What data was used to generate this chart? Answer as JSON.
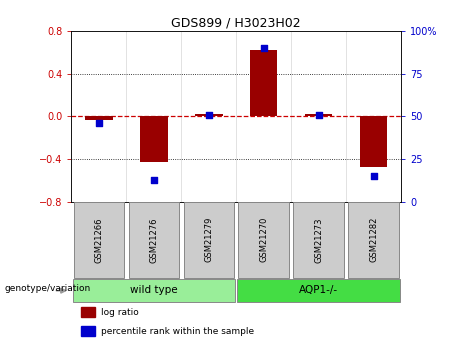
{
  "title": "GDS899 / H3023H02",
  "samples": [
    "GSM21266",
    "GSM21276",
    "GSM21279",
    "GSM21270",
    "GSM21273",
    "GSM21282"
  ],
  "log_ratio": [
    -0.03,
    -0.43,
    0.02,
    0.62,
    0.02,
    -0.47
  ],
  "percentile_rank": [
    46,
    13,
    51,
    90,
    51,
    15
  ],
  "ylim_left": [
    -0.8,
    0.8
  ],
  "ylim_right": [
    0,
    100
  ],
  "yticks_left": [
    -0.8,
    -0.4,
    0.0,
    0.4,
    0.8
  ],
  "yticks_right": [
    0,
    25,
    50,
    75,
    100
  ],
  "bar_color": "#990000",
  "dot_color": "#0000cc",
  "zero_line_color": "#cc0000",
  "grid_color": "#000000",
  "genotype_groups": [
    {
      "label": "wild type",
      "indices": [
        0,
        1,
        2
      ],
      "color": "#99ee99"
    },
    {
      "label": "AQP1-/-",
      "indices": [
        3,
        4,
        5
      ],
      "color": "#44dd44"
    }
  ],
  "legend_items": [
    {
      "label": "log ratio",
      "color": "#990000"
    },
    {
      "label": "percentile rank within the sample",
      "color": "#0000cc"
    }
  ],
  "genotype_label": "genotype/variation",
  "background_color": "#ffffff",
  "plot_bg_color": "#ffffff",
  "tick_label_color_left": "#cc0000",
  "tick_label_color_right": "#0000cc",
  "sample_box_color": "#cccccc",
  "sample_box_edge": "#888888"
}
